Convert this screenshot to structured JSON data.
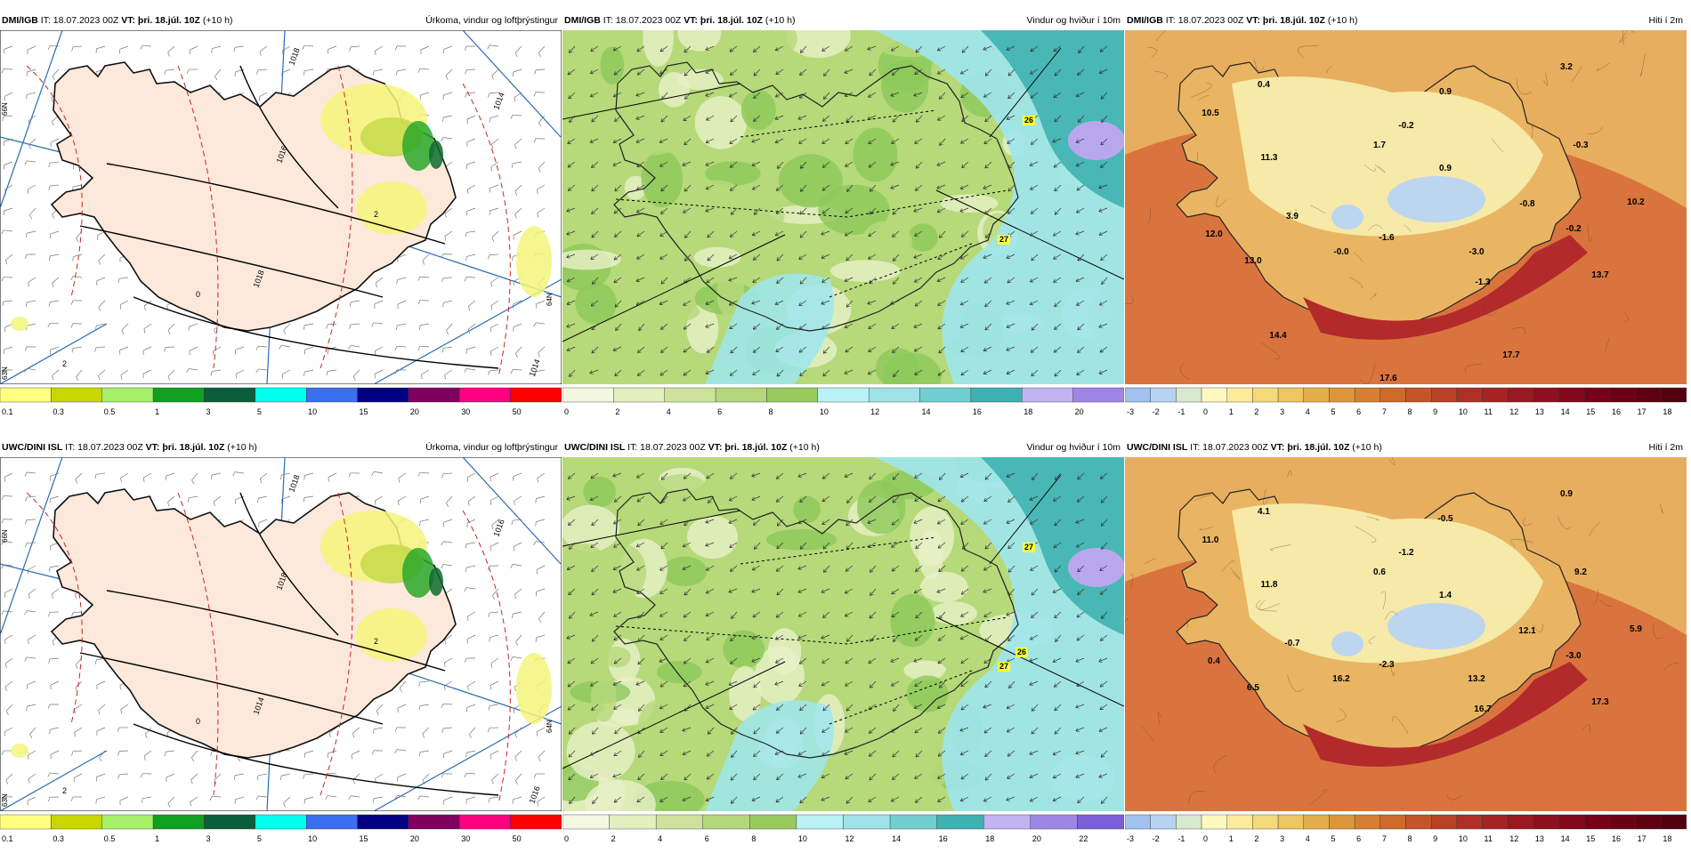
{
  "colors": {
    "land_precip": "#fce9db",
    "sea_precip": "#ffffff",
    "isobar": "#000000",
    "dashed_contour": "#cc2222",
    "meridian": "#2a6db5",
    "precip_light": "#f5f57a",
    "precip_mid": "#c7d94a",
    "precip_green": "#2aa82a",
    "precip_dark": "#0d6b2e",
    "wind_light": "#e8f0c8",
    "wind_mid": "#b6d97a",
    "wind_strong": "#8cc85a",
    "wind_cyan": "#9ee6ee",
    "wind_teal": "#3fb1b0",
    "wind_purple": "#b9a7ee",
    "temp_cold": "#bcd6f0",
    "temp_cool": "#f7e9a8",
    "temp_mild": "#e9b563",
    "temp_warm": "#d9743e",
    "temp_hot": "#b22a2a",
    "highlight_box": "#ffff33"
  },
  "panels": [
    {
      "model": "DMI/IGB",
      "it": "IT: 18.07.2023 00Z",
      "vt": "VT: þri. 18.júl. 10Z",
      "lead": "(+10 h)",
      "product": "Úrkoma, vindur og loftþrýstingur",
      "isobar_labels": [
        "1018",
        "1014",
        "1016",
        "1018",
        "1014"
      ],
      "lat_labels": [
        "66N",
        "64N",
        "63N"
      ],
      "dashed_labels": [
        "2",
        "0",
        "2"
      ],
      "legend": [
        "0.1",
        "0.3",
        "0.5",
        "1",
        "3",
        "5",
        "10",
        "15",
        "20",
        "30",
        "50"
      ]
    },
    {
      "model": "DMI/IGB",
      "it": "IT: 18.07.2023 00Z",
      "vt": "VT: þri. 18.júl. 10Z",
      "lead": "(+10 h)",
      "product": "Vindur og hviður í 10m",
      "gusts": [
        "26",
        "27"
      ],
      "legend": [
        "0",
        "2",
        "4",
        "6",
        "8",
        "10",
        "12",
        "14",
        "16",
        "18",
        "20"
      ]
    },
    {
      "model": "DMI/IGB",
      "it": "IT: 18.07.2023 00Z",
      "vt": "VT: þri. 18.júl. 10Z",
      "lead": "(+10 h)",
      "product": "Hiti í 2m",
      "temps": [
        "0.4",
        "3.2",
        "10.5",
        "0.9",
        "-0.2",
        "11.3",
        "1.7",
        "-0.3",
        "0.9",
        "10.2",
        "3.9",
        "-0.8",
        "12.0",
        "-1.6",
        "-0.2",
        "-0.0",
        "-3.0",
        "13.0",
        "-1.3",
        "13.7",
        "14.4",
        "17.7",
        "17.6"
      ],
      "legend": [
        "-3",
        "-2",
        "-1",
        "0",
        "1",
        "2",
        "3",
        "4",
        "5",
        "6",
        "7",
        "8",
        "9",
        "10",
        "11",
        "12",
        "13",
        "14",
        "15",
        "16",
        "17",
        "18"
      ]
    },
    {
      "model": "UWC/DINI ISL",
      "it": "IT: 18.07.2023 00Z",
      "vt": "VT: þri. 18.júl. 10Z",
      "lead": "(+10 h)",
      "product": "Úrkoma, vindur og loftþrýstingur",
      "isobar_labels": [
        "1018",
        "1016",
        "1018",
        "1014",
        "1016"
      ],
      "lat_labels": [
        "66N",
        "64N",
        "63N"
      ],
      "dashed_labels": [
        "2",
        "0",
        "2"
      ],
      "legend": [
        "0.1",
        "0.3",
        "0.5",
        "1",
        "3",
        "5",
        "10",
        "15",
        "20",
        "30",
        "50"
      ]
    },
    {
      "model": "UWC/DINI ISL",
      "it": "IT: 18.07.2023 00Z",
      "vt": "VT: þri. 18.júl. 10Z",
      "lead": "(+10 h)",
      "product": "Vindur og hviður í 10m",
      "gusts": [
        "27",
        "27",
        "26"
      ],
      "legend": [
        "0",
        "2",
        "4",
        "6",
        "8",
        "10",
        "12",
        "14",
        "16",
        "18",
        "20",
        "22"
      ]
    },
    {
      "model": "UWC/DINI ISL",
      "it": "IT: 18.07.2023 00Z",
      "vt": "VT: þri. 18.júl. 10Z",
      "lead": "(+10 h)",
      "product": "Hiti í 2m",
      "temps": [
        "4.1",
        "0.9",
        "11.0",
        "-0.5",
        "-1.2",
        "11.8",
        "0.6",
        "9.2",
        "1.4",
        "5.9",
        "-0.7",
        "12.1",
        "0.4",
        "-2.3",
        "-3.0",
        "16.2",
        "13.2",
        "6.5",
        "16.7",
        "17.3"
      ],
      "legend": [
        "-3",
        "-2",
        "-1",
        "0",
        "1",
        "2",
        "3",
        "4",
        "5",
        "6",
        "7",
        "8",
        "9",
        "10",
        "11",
        "12",
        "13",
        "14",
        "15",
        "16",
        "17",
        "18"
      ]
    }
  ]
}
